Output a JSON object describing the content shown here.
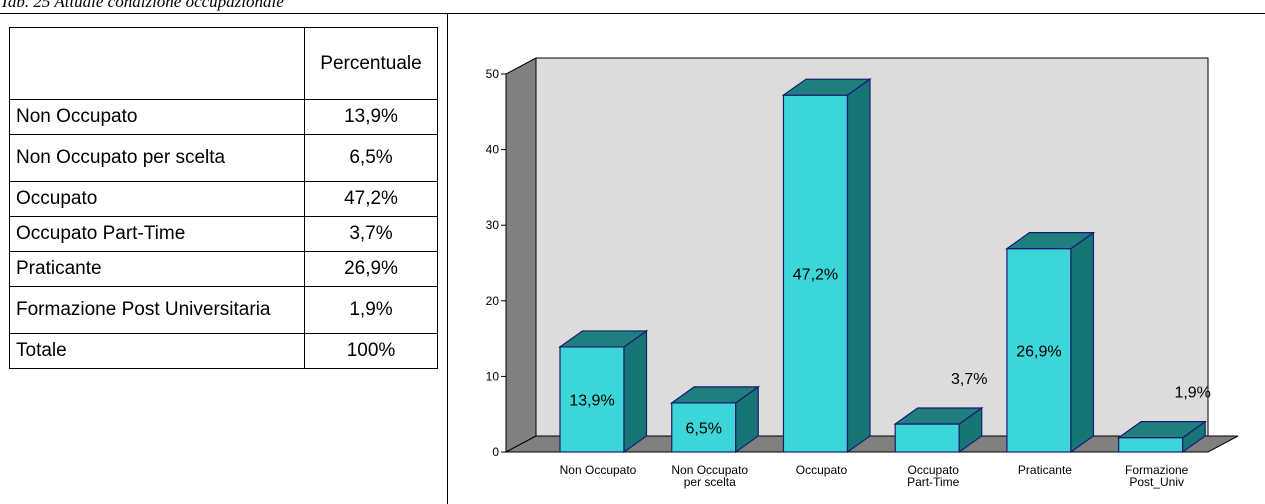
{
  "caption": "Tab. 25 Attuale condizione occupazionale",
  "table": {
    "header": [
      "",
      "Percentuale"
    ],
    "rows": [
      {
        "label": "Non Occupato",
        "value": "13,9%"
      },
      {
        "label": "Non Occupato per scelta",
        "value": "6,5%"
      },
      {
        "label": "Occupato",
        "value": "47,2%"
      },
      {
        "label": "Occupato Part-Time",
        "value": "3,7%"
      },
      {
        "label": "Praticante",
        "value": "26,9%"
      },
      {
        "label": "Formazione Post Universitaria",
        "value": "1,9%"
      },
      {
        "label": "Totale",
        "value": "100%"
      }
    ]
  },
  "colors": {
    "bar_front": "#3cd5d8",
    "bar_side": "#177575",
    "bar_top": "#1f7f7f",
    "wall": "#dcdcdc",
    "floor": "#808080",
    "left_wall": "#808080"
  },
  "chart_data": {
    "type": "bar",
    "categories": [
      "Non Occupato",
      "Non Occupato per scelta",
      "Occupato",
      "Occupato Part-Time",
      "Praticante",
      "Formazione Post_Univ"
    ],
    "category_lines": [
      [
        "Non Occupato"
      ],
      [
        "Non Occupato",
        "per scelta"
      ],
      [
        "Occupato"
      ],
      [
        "Occupato",
        "Part-Time"
      ],
      [
        "Praticante"
      ],
      [
        "Formazione",
        "Post_Univ"
      ]
    ],
    "values": [
      13.9,
      6.5,
      47.2,
      3.7,
      26.9,
      1.9
    ],
    "data_labels": [
      "13,9%",
      "6,5%",
      "47,2%",
      "3,7%",
      "26,9%",
      "1,9%"
    ],
    "yticks": [
      0,
      10,
      20,
      30,
      40,
      50
    ],
    "ylim": [
      0,
      50
    ],
    "grid": false,
    "legend": "none",
    "title": "",
    "xlabel": "",
    "ylabel": ""
  }
}
